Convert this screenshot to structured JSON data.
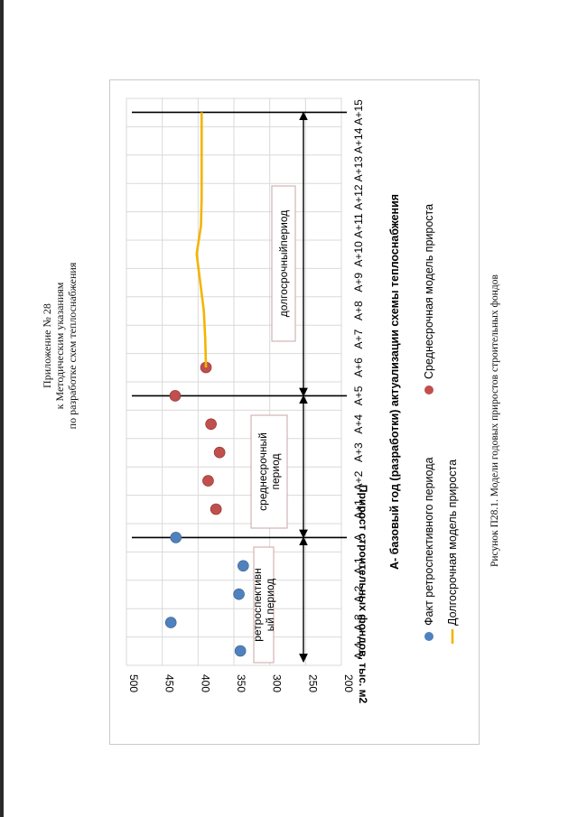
{
  "header": {
    "line1": "Приложение № 28",
    "line2": "к Методическим указаниям",
    "line3": "по разработке схем теплоснабжения"
  },
  "caption": "Рисунок П28.1. Модели годовых приростов строительных фондов",
  "chart_data": {
    "type": "scatter",
    "title": "",
    "xlabel": "А- базовый год (разработки) актуализации схемы теплоснабжения",
    "ylabel": "Прирост строительных фондов, тыс. м2",
    "categories": [
      "А-4",
      "А-3",
      "А-2",
      "А-1",
      "А",
      "А+1",
      "А+2",
      "А+3",
      "А+4",
      "А+5",
      "А+6",
      "А+7",
      "А+8",
      "А+9",
      "А+10",
      "А+11",
      "А+12",
      "А+13",
      "А+14",
      "А+15"
    ],
    "ylim": [
      200,
      500
    ],
    "y_ticks": [
      200,
      250,
      300,
      350,
      400,
      450,
      500
    ],
    "grid": true,
    "legend_position": "bottom",
    "series": [
      {
        "name": "Факт ретроспективного периода",
        "kind": "points",
        "color": "#4f81bd",
        "x": [
          "А-4",
          "А-3",
          "А-2",
          "А-1",
          "А"
        ],
        "values": [
          341,
          438,
          343,
          337,
          431
        ]
      },
      {
        "name": "Среднесрочная модель прироста",
        "kind": "points",
        "color": "#c0504d",
        "x": [
          "А+1",
          "А+2",
          "А+3",
          "А+4",
          "А+5",
          "А+6"
        ],
        "values": [
          375,
          386,
          370,
          382,
          432,
          389
        ]
      },
      {
        "name": "Долгосрочная модель прироста",
        "kind": "line",
        "color": "#f4b400",
        "x": [
          "А+6",
          "А+7",
          "А+8",
          "А+9",
          "А+10",
          "А+11",
          "А+12",
          "А+13",
          "А+14",
          "А+15"
        ],
        "values": [
          389,
          390,
          392,
          397,
          402,
          396,
          395,
          395,
          395,
          395
        ]
      }
    ],
    "periods": [
      {
        "label": "ретроспективн ый период",
        "from": "А-4",
        "to": "А"
      },
      {
        "label": "среднесрочный период",
        "from": "А",
        "to": "А+5"
      },
      {
        "label": "долгосрочныйпериод",
        "from": "А+5",
        "to": "А+15"
      }
    ]
  }
}
